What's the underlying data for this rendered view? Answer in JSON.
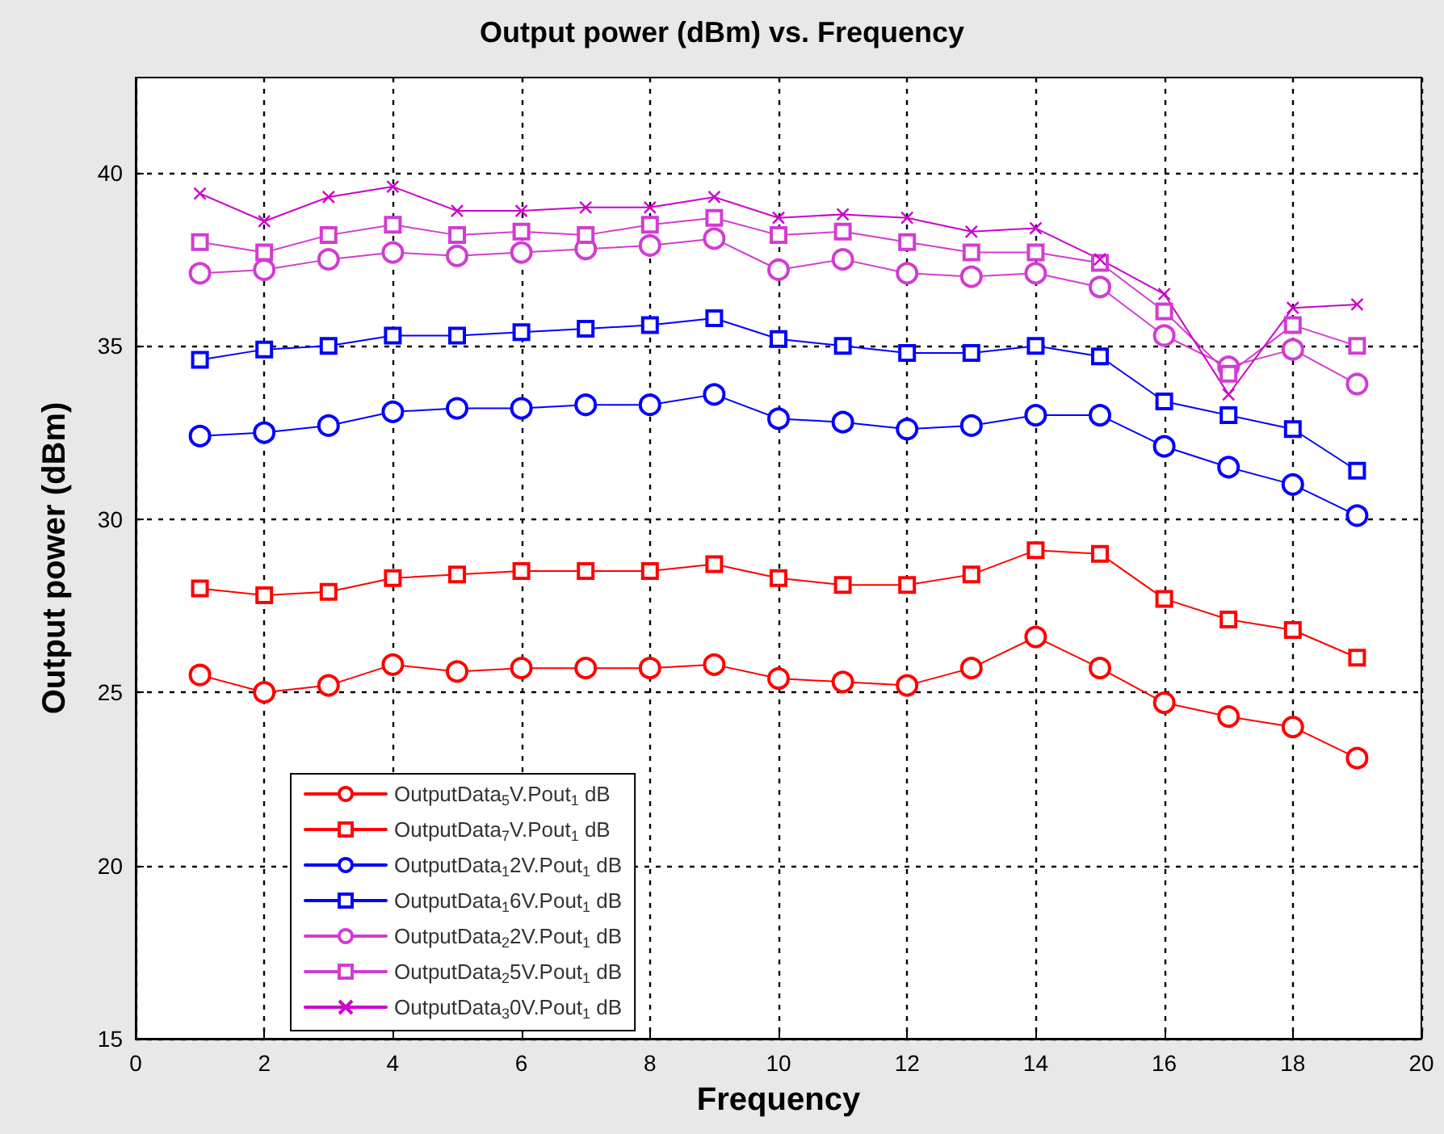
{
  "chart_data": {
    "type": "line",
    "title": "Output power (dBm) vs. Frequency",
    "xlabel": "Frequency",
    "ylabel": "Output power (dBm)",
    "x": [
      1,
      2,
      3,
      4,
      5,
      6,
      7,
      8,
      9,
      10,
      11,
      12,
      13,
      14,
      15,
      16,
      17,
      18,
      19
    ],
    "xlim": [
      0,
      20
    ],
    "xticks": [
      0,
      2,
      4,
      6,
      8,
      10,
      12,
      14,
      16,
      18,
      20
    ],
    "ylim": [
      15,
      42.75
    ],
    "yticks": [
      15,
      20,
      25,
      30,
      35,
      40
    ],
    "grid": true,
    "legend": "bottom left",
    "line_style": "solid",
    "series": [
      {
        "name": "OutputData$_{5}$V.Pout$_{1}$ dB",
        "color": "#ff0000",
        "marker": "circle",
        "values": [
          25.5,
          25.0,
          25.2,
          25.8,
          25.6,
          25.7,
          25.7,
          25.7,
          25.8,
          25.4,
          25.3,
          25.2,
          25.7,
          26.6,
          25.7,
          24.7,
          24.3,
          24.0,
          23.1
        ]
      },
      {
        "name": "OutputData$_{7}$V.Pout$_{1}$ dB",
        "color": "#ff0000",
        "marker": "square",
        "values": [
          28.0,
          27.8,
          27.9,
          28.3,
          28.4,
          28.5,
          28.5,
          28.5,
          28.7,
          28.3,
          28.1,
          28.1,
          28.4,
          29.1,
          29.0,
          27.7,
          27.1,
          26.8,
          26.0
        ]
      },
      {
        "name": "OutputData$_{1}$2V.Pout$_{1}$ dB",
        "color": "#0000ff",
        "marker": "circle",
        "values": [
          32.4,
          32.5,
          32.7,
          33.1,
          33.2,
          33.2,
          33.3,
          33.3,
          33.6,
          32.9,
          32.8,
          32.6,
          32.7,
          33.0,
          33.0,
          32.1,
          31.5,
          31.0,
          30.1
        ]
      },
      {
        "name": "OutputData$_{1}$6V.Pout$_{1}$ dB",
        "color": "#0000ff",
        "marker": "square",
        "values": [
          34.6,
          34.9,
          35.0,
          35.3,
          35.3,
          35.4,
          35.5,
          35.6,
          35.8,
          35.2,
          35.0,
          34.8,
          34.8,
          35.0,
          34.7,
          33.4,
          33.0,
          32.6,
          31.4
        ]
      },
      {
        "name": "OutputData$_{2}$2V.Pout$_{1}$ dB",
        "color": "#d23cd2",
        "marker": "circle",
        "values": [
          37.1,
          37.2,
          37.5,
          37.7,
          37.6,
          37.7,
          37.8,
          37.9,
          38.1,
          37.2,
          37.5,
          37.1,
          37.0,
          37.1,
          36.7,
          35.3,
          34.4,
          34.9,
          33.9
        ]
      },
      {
        "name": "OutputData$_{2}$5V.Pout$_{1}$ dB",
        "color": "#d23cd2",
        "marker": "square",
        "values": [
          38.0,
          37.7,
          38.2,
          38.5,
          38.2,
          38.3,
          38.2,
          38.5,
          38.7,
          38.2,
          38.3,
          38.0,
          37.7,
          37.7,
          37.4,
          36.0,
          34.2,
          35.6,
          35.0
        ]
      },
      {
        "name": "OutputData$_{3}$0V.Pout$_{1}$ dB",
        "color": "#cc00cc",
        "marker": "cross",
        "values": [
          39.4,
          38.6,
          39.3,
          39.6,
          38.9,
          38.9,
          39.0,
          39.0,
          39.3,
          38.7,
          38.8,
          38.7,
          38.3,
          38.4,
          37.5,
          36.5,
          33.6,
          36.1,
          36.2
        ]
      }
    ]
  }
}
